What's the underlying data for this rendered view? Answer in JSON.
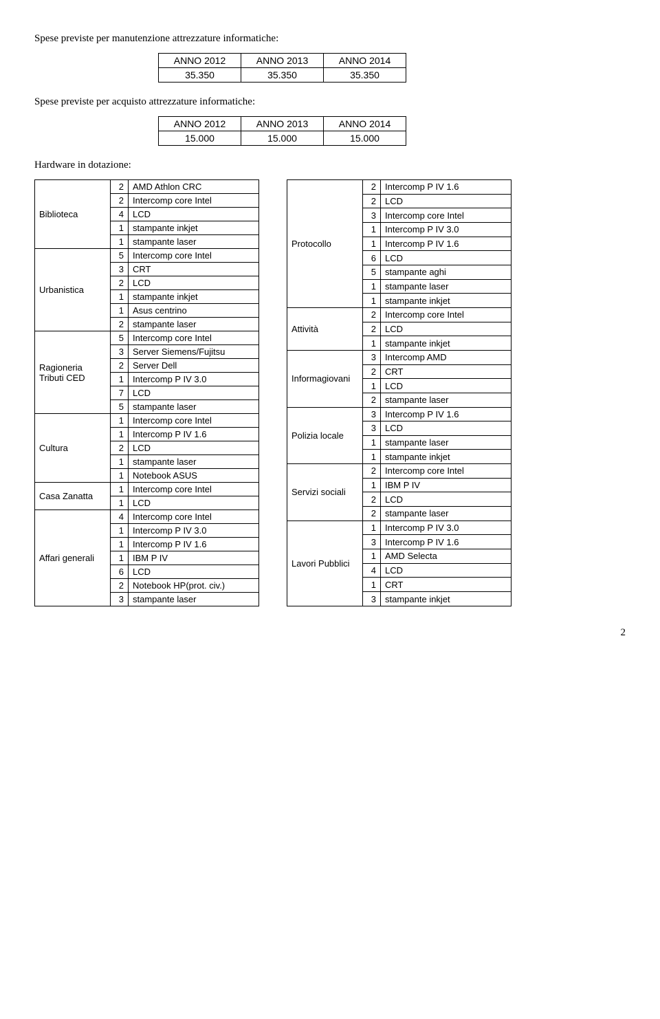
{
  "headings": {
    "h1": "Spese previste per manutenzione attrezzature informatiche:",
    "h2": "Spese previste per acquisto attrezzature informatiche:",
    "h3": "Hardware in dotazione:"
  },
  "table1": {
    "headers": [
      "ANNO 2012",
      "ANNO 2013",
      "ANNO 2014"
    ],
    "values": [
      "35.350",
      "35.350",
      "35.350"
    ]
  },
  "table2": {
    "headers": [
      "ANNO 2012",
      "ANNO 2013",
      "ANNO 2014"
    ],
    "values": [
      "15.000",
      "15.000",
      "15.000"
    ]
  },
  "left": [
    {
      "label": "Biblioteca",
      "items": [
        {
          "n": "2",
          "d": "AMD Athlon CRC"
        },
        {
          "n": "2",
          "d": "Intercomp core Intel"
        },
        {
          "n": "4",
          "d": "LCD"
        },
        {
          "n": "1",
          "d": "stampante inkjet"
        },
        {
          "n": "1",
          "d": "stampante laser"
        }
      ]
    },
    {
      "label": "Urbanistica",
      "items": [
        {
          "n": "5",
          "d": "Intercomp core Intel"
        },
        {
          "n": "3",
          "d": "CRT"
        },
        {
          "n": "2",
          "d": "LCD"
        },
        {
          "n": "1",
          "d": "stampante inkjet"
        },
        {
          "n": "1",
          "d": "Asus centrino"
        },
        {
          "n": "2",
          "d": "stampante laser"
        }
      ]
    },
    {
      "label": "Ragioneria Tributi CED",
      "items": [
        {
          "n": "5",
          "d": "Intercomp core Intel"
        },
        {
          "n": "3",
          "d": "Server Siemens/Fujitsu"
        },
        {
          "n": "2",
          "d": "Server Dell"
        },
        {
          "n": "1",
          "d": "Intercomp P IV 3.0"
        },
        {
          "n": "7",
          "d": "LCD"
        },
        {
          "n": "5",
          "d": "stampante laser"
        }
      ]
    },
    {
      "label": "Cultura",
      "items": [
        {
          "n": "1",
          "d": "Intercomp core Intel"
        },
        {
          "n": "1",
          "d": "Intercomp P IV 1.6"
        },
        {
          "n": "2",
          "d": "LCD"
        },
        {
          "n": "1",
          "d": "stampante laser"
        },
        {
          "n": "1",
          "d": "Notebook ASUS"
        }
      ]
    },
    {
      "label": "Casa Zanatta",
      "items": [
        {
          "n": "1",
          "d": "Intercomp core Intel"
        },
        {
          "n": "1",
          "d": "LCD"
        }
      ]
    },
    {
      "label": "Affari generali",
      "items": [
        {
          "n": "4",
          "d": "Intercomp core Intel"
        },
        {
          "n": "1",
          "d": "Intercomp P IV 3.0"
        },
        {
          "n": "1",
          "d": "Intercomp P IV 1.6"
        },
        {
          "n": "1",
          "d": "IBM P IV"
        },
        {
          "n": "6",
          "d": "LCD"
        },
        {
          "n": "2",
          "d": "Notebook HP(prot. civ.)"
        },
        {
          "n": "3",
          "d": "stampante laser"
        }
      ]
    }
  ],
  "right": [
    {
      "label": "Protocollo",
      "items": [
        {
          "n": "2",
          "d": "Intercomp P IV 1.6"
        },
        {
          "n": "2",
          "d": "LCD"
        },
        {
          "n": "3",
          "d": "Intercomp core Intel"
        },
        {
          "n": "1",
          "d": "Intercomp P IV 3.0"
        },
        {
          "n": "1",
          "d": "Intercomp P IV 1.6"
        },
        {
          "n": "6",
          "d": "LCD"
        },
        {
          "n": "5",
          "d": "stampante aghi"
        },
        {
          "n": "1",
          "d": "stampante laser"
        },
        {
          "n": "1",
          "d": "stampante inkjet"
        }
      ]
    },
    {
      "label": "Attività",
      "items": [
        {
          "n": "2",
          "d": "Intercomp core Intel"
        },
        {
          "n": "2",
          "d": "LCD"
        },
        {
          "n": "1",
          "d": "stampante inkjet"
        }
      ]
    },
    {
      "label": "Informagiovani",
      "items": [
        {
          "n": "3",
          "d": "Intercomp AMD"
        },
        {
          "n": "2",
          "d": "CRT"
        },
        {
          "n": "1",
          "d": "LCD"
        },
        {
          "n": "2",
          "d": "stampante laser"
        }
      ]
    },
    {
      "label": "Polizia locale",
      "items": [
        {
          "n": "3",
          "d": "Intercomp P IV 1.6"
        },
        {
          "n": "3",
          "d": "LCD"
        },
        {
          "n": "1",
          "d": "stampante laser"
        },
        {
          "n": "1",
          "d": "stampante inkjet"
        }
      ]
    },
    {
      "label": "Servizi sociali",
      "items": [
        {
          "n": "2",
          "d": "Intercomp core Intel"
        },
        {
          "n": "1",
          "d": "IBM P IV"
        },
        {
          "n": "2",
          "d": "LCD"
        },
        {
          "n": "2",
          "d": "stampante laser"
        }
      ]
    },
    {
      "label": "Lavori Pubblici",
      "items": [
        {
          "n": "1",
          "d": "Intercomp P IV 3.0"
        },
        {
          "n": "3",
          "d": "Intercomp P IV 1.6"
        },
        {
          "n": "1",
          "d": "AMD Selecta"
        },
        {
          "n": "4",
          "d": "LCD"
        },
        {
          "n": "1",
          "d": "CRT"
        },
        {
          "n": "3",
          "d": "stampante inkjet"
        }
      ]
    }
  ],
  "page_number": "2"
}
